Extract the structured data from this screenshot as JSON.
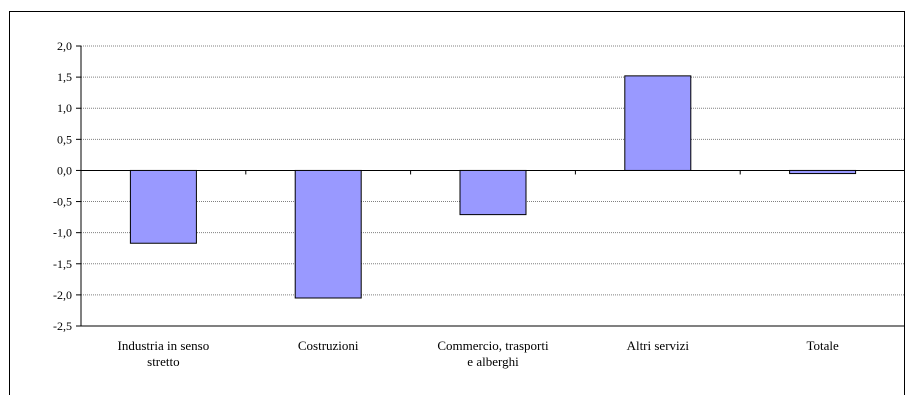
{
  "chart_data": {
    "type": "bar",
    "title": "",
    "xlabel": "",
    "ylabel": "",
    "categories": [
      [
        "Industria in senso",
        "stretto"
      ],
      [
        "Costruzioni"
      ],
      [
        "Commercio, trasporti",
        "e alberghi"
      ],
      [
        "Altri servizi"
      ],
      [
        "Totale"
      ]
    ],
    "values": [
      -1.17,
      -2.05,
      -0.71,
      1.52,
      -0.05
    ],
    "ylim": [
      -2.5,
      2.0
    ],
    "yticks": [
      2.0,
      1.5,
      1.0,
      0.5,
      0.0,
      -0.5,
      -1.0,
      -1.5,
      -2.0,
      -2.5
    ],
    "ytick_labels": [
      "2,0",
      "1,5",
      "1,0",
      "0,5",
      "0,0",
      "-0,5",
      "-1,0",
      "-1,5",
      "-2,0",
      "-2,5"
    ],
    "grid": true,
    "legend": "none",
    "colors": {
      "bar_fill": "#9999ff",
      "bar_stroke": "#000000",
      "gridline": "#808080"
    }
  }
}
